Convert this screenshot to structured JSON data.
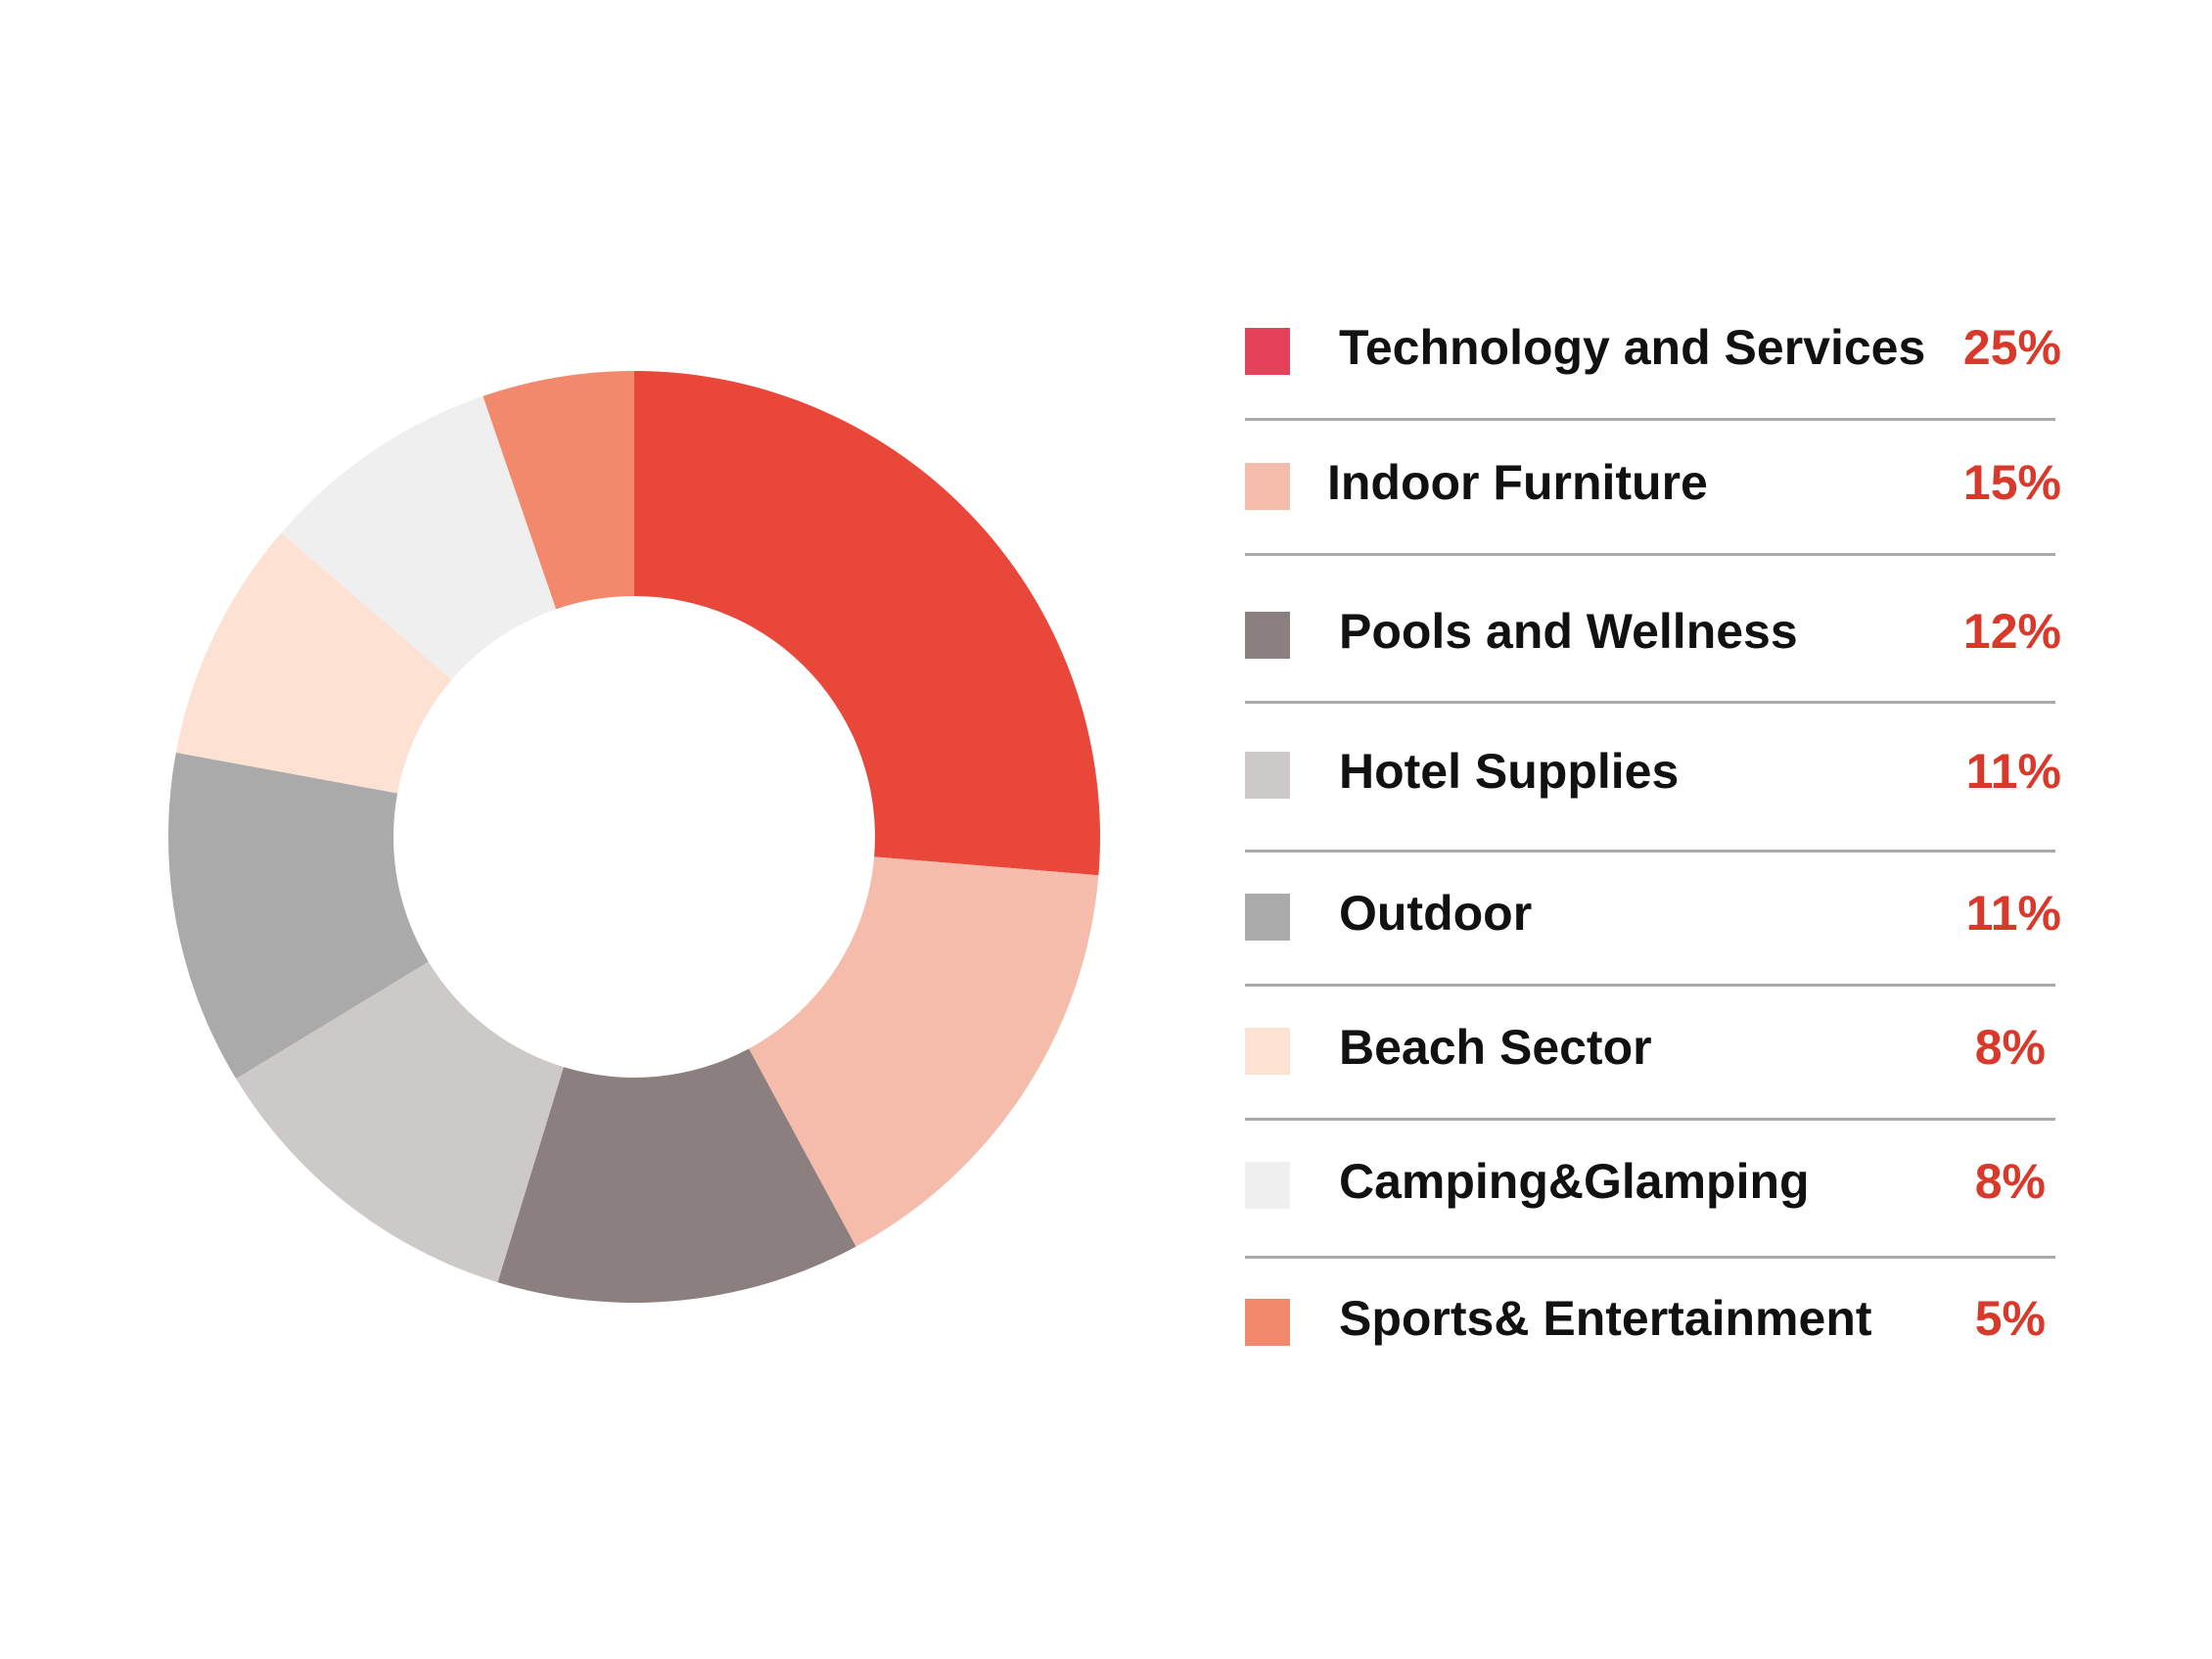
{
  "chart_data": {
    "type": "pie",
    "donut": true,
    "categories": [
      "Technology and Services",
      "Indoor Furniture",
      "Pools and Wellness",
      "Hotel Supplies",
      "Outdoor",
      "Beach Sector",
      "Camping&Glamping",
      "Sports& Entertainment"
    ],
    "values": [
      25,
      15,
      12,
      11,
      11,
      8,
      8,
      5
    ],
    "value_labels": [
      "25%",
      "15%",
      "12%",
      "11%",
      "11%",
      "8%",
      "8%",
      "5%"
    ],
    "slice_colors": [
      "#e8473a",
      "#f6bcab",
      "#8c7f7f",
      "#cdc9c9",
      "#aaaaaa",
      "#fde1d3",
      "#efefef",
      "#f2886c"
    ],
    "legend_colors": [
      "#e6415b",
      "#f6bcab",
      "#8c7f7f",
      "#cdc9c9",
      "#aaaaaa",
      "#fde1d3",
      "#efefef",
      "#f2886c"
    ],
    "legend_placement": "right",
    "title": "",
    "value_color": "#d8392b"
  }
}
